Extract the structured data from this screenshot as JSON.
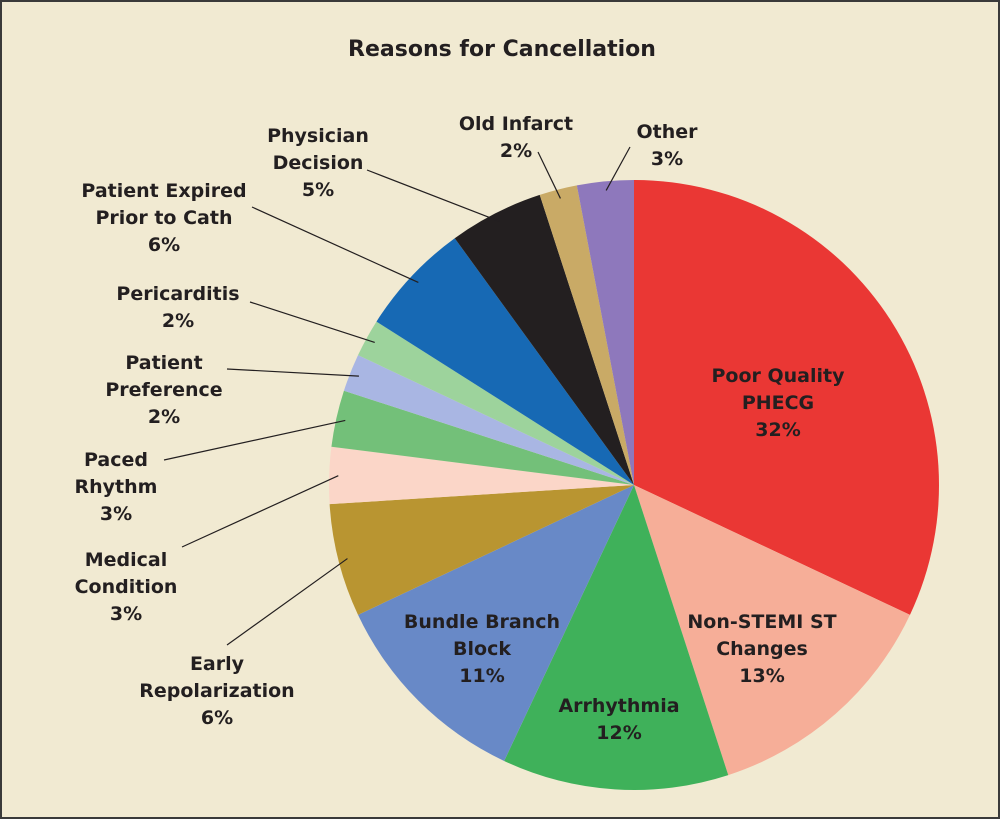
{
  "chart_data": {
    "type": "pie",
    "title": "Reasons for Cancellation",
    "start": "top",
    "direction": "clockwise",
    "slices": [
      {
        "label": [
          "Poor Quality",
          "PHECG"
        ],
        "value": 32,
        "pct": "32%",
        "color": "#ea3734"
      },
      {
        "label": [
          "Non-STEMI ST",
          "Changes"
        ],
        "value": 13,
        "pct": "13%",
        "color": "#f6ae98"
      },
      {
        "label": [
          "Arrhythmia"
        ],
        "value": 12,
        "pct": "12%",
        "color": "#3fb15a"
      },
      {
        "label": [
          "Bundle Branch",
          "Block"
        ],
        "value": 11,
        "pct": "11%",
        "color": "#6889c7"
      },
      {
        "label": [
          "Early",
          "Repolarization"
        ],
        "value": 6,
        "pct": "6%",
        "color": "#b99531"
      },
      {
        "label": [
          "Medical",
          "Condition"
        ],
        "value": 3,
        "pct": "3%",
        "color": "#fbd6c8"
      },
      {
        "label": [
          "Paced",
          "Rhythm"
        ],
        "value": 3,
        "pct": "3%",
        "color": "#73c079"
      },
      {
        "label": [
          "Patient",
          "Preference"
        ],
        "value": 2,
        "pct": "2%",
        "color": "#a9b6e3"
      },
      {
        "label": [
          "Pericarditis"
        ],
        "value": 2,
        "pct": "2%",
        "color": "#9dd39c"
      },
      {
        "label": [
          "Patient Expired",
          "Prior to Cath"
        ],
        "value": 6,
        "pct": "6%",
        "color": "#1769b4"
      },
      {
        "label": [
          "Physician",
          "Decision"
        ],
        "value": 5,
        "pct": "5%",
        "color": "#231f20"
      },
      {
        "label": [
          "Old Infarct"
        ],
        "value": 2,
        "pct": "2%",
        "color": "#c9aa66"
      },
      {
        "label": [
          "Other"
        ],
        "value": 3,
        "pct": "3%",
        "color": "#8e78bc"
      }
    ]
  }
}
